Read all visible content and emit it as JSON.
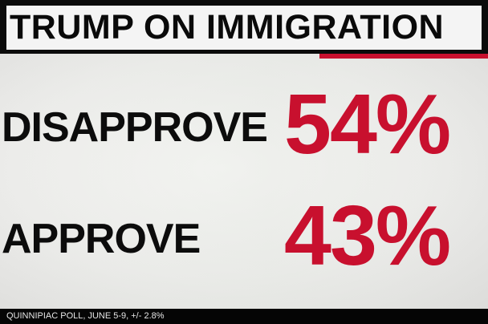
{
  "title": "TRUMP ON IMMIGRATION",
  "results": [
    {
      "label": "DISAPPROVE",
      "value": "54%"
    },
    {
      "label": "APPROVE",
      "value": "43%"
    }
  ],
  "source": "QUINNIPIAC POLL, JUNE 5-9, +/- 2.8%",
  "colors": {
    "accent": "#c8102e",
    "text": "#0c0c0c",
    "background": "#ececea",
    "bar": "#0b0b0b"
  }
}
